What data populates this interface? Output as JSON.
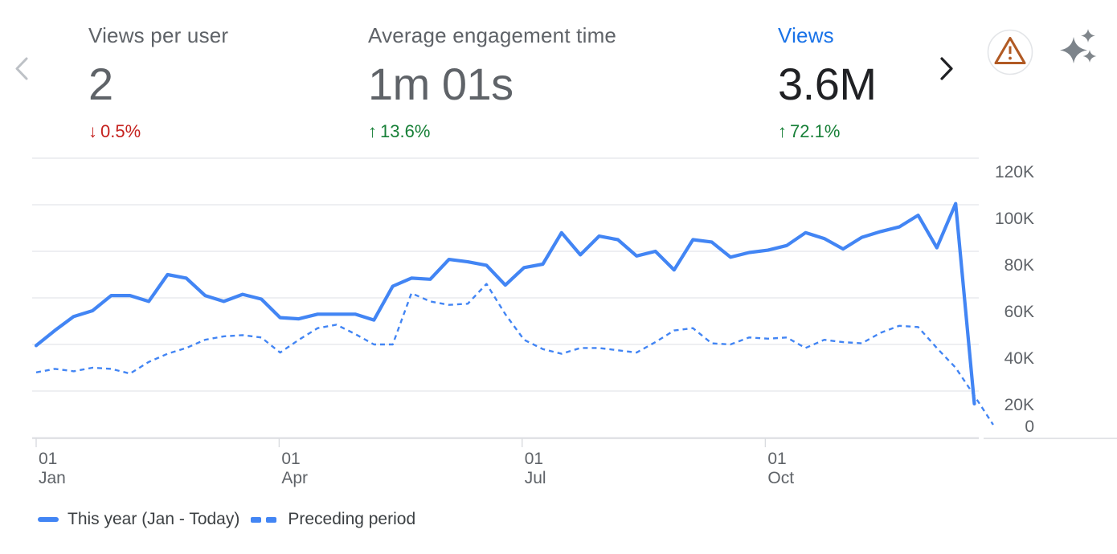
{
  "colors": {
    "line_blue": "#4285f4",
    "metric_selected_blue": "#1a73e8",
    "positive_green": "#188038",
    "negative_red": "#c5221f",
    "grid_line": "#e8eaed",
    "axis_line": "#dadce0",
    "axis_text": "#5f6368",
    "label_gray": "#5f6368",
    "value_black": "#202124",
    "legend_text": "#3c4043",
    "warning_orange": "#b15a24",
    "sparkle_gray": "#80868b",
    "chevron_disabled": "#bdc1c6",
    "chevron_active": "#202124"
  },
  "header": {
    "metrics": [
      {
        "id": "views-per-user",
        "label": "Views per user",
        "value": "2",
        "arrow": "↓",
        "delta": "0.5%",
        "trend": "down",
        "selected": false
      },
      {
        "id": "average-engagement-time",
        "label": "Average engagement time",
        "value": "1m 01s",
        "arrow": "↑",
        "delta": "13.6%",
        "trend": "up",
        "selected": false
      },
      {
        "id": "views",
        "label": "Views",
        "value": "3.6M",
        "arrow": "↑",
        "delta": "72.1%",
        "trend": "up",
        "selected": true
      }
    ],
    "icons": {
      "prev": "chevron-left",
      "next": "chevron-right",
      "data_quality": "warning-triangle-in-circle",
      "insights": "sparkles"
    }
  },
  "chart_data": {
    "type": "line",
    "metric": "Views",
    "x_unit": "week",
    "grid": true,
    "legend_position": "bottom-left",
    "y_axis_side": "right",
    "ylim_thousands": [
      0,
      125
    ],
    "y_ticks": [
      {
        "label": "0",
        "value": 0
      },
      {
        "label": "20K",
        "value": 20
      },
      {
        "label": "40K",
        "value": 40
      },
      {
        "label": "60K",
        "value": 60
      },
      {
        "label": "80K",
        "value": 80
      },
      {
        "label": "100K",
        "value": 100
      },
      {
        "label": "120K",
        "value": 120
      }
    ],
    "x_ticks": [
      {
        "day": "01",
        "month": "Jan",
        "week": 0
      },
      {
        "day": "01",
        "month": "Apr",
        "week": 12.95
      },
      {
        "day": "01",
        "month": "Jul",
        "week": 25.9
      },
      {
        "day": "01",
        "month": "Oct",
        "week": 38.86
      }
    ],
    "series": [
      {
        "name": "This year (Jan - Today)",
        "style": "solid",
        "values_thousands": [
          39.5,
          46,
          52,
          54.5,
          61,
          61,
          58.5,
          70,
          68.5,
          61,
          58.5,
          61.5,
          59.5,
          51.5,
          51,
          53,
          53,
          53,
          50.5,
          65,
          68.5,
          68,
          76.5,
          75.5,
          74,
          65.5,
          73,
          74.5,
          88,
          78.5,
          86.5,
          85,
          78,
          80,
          72,
          85,
          84,
          77.5,
          79.5,
          80.5,
          82.5,
          88,
          85.5,
          81,
          86,
          88.5,
          90.5,
          95.5,
          81.5,
          100.5,
          14.5
        ]
      },
      {
        "name": "Preceding period",
        "style": "dashed",
        "values_thousands": [
          28,
          29.5,
          28.5,
          30,
          29.5,
          27.5,
          32.5,
          36,
          38.5,
          42,
          43.5,
          44,
          43,
          36.5,
          42,
          47,
          48.5,
          44.5,
          40,
          40,
          62,
          58.5,
          57,
          57.5,
          66,
          53,
          42,
          38,
          36,
          38.5,
          38.5,
          37.5,
          36.5,
          41,
          46,
          47,
          40.5,
          40,
          43,
          42.5,
          43,
          38.5,
          42,
          41,
          40.5,
          45,
          48,
          47.5,
          38.5,
          30,
          18,
          5.5
        ]
      }
    ]
  }
}
